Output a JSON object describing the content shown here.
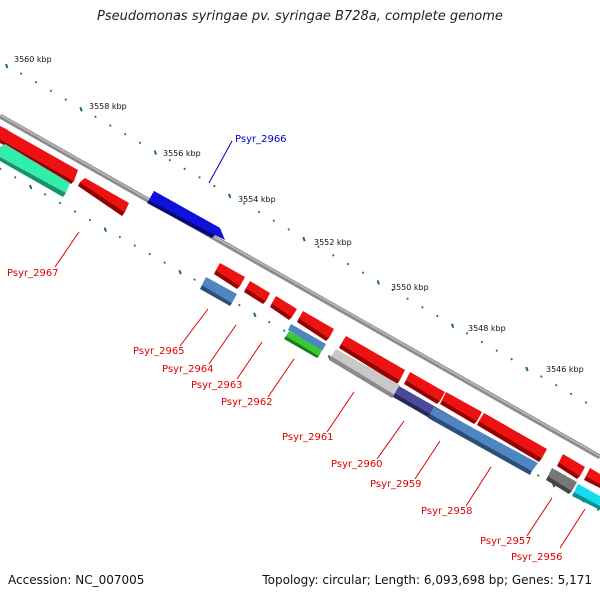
{
  "title": "Pseudomonas syringae pv. syringae B728a, complete genome",
  "footer": {
    "accession": "Accession: NC_007005",
    "summary": "Topology: circular; Length: 6,093,698 bp; Genes: 5,171"
  },
  "colors": {
    "backbone": "#8c8c8c",
    "tick": "#1a7a1a",
    "gene_red": "#ee1111",
    "gene_blue": "#1111dd",
    "gene_steelblue": "#4f86c0",
    "gene_green": "#33cc33",
    "gene_aqua": "#33eeaa",
    "gene_gray": "#bdbdbd",
    "gene_darkgray": "#777777",
    "gene_navy": "#4a4a9a",
    "gene_cyan": "#11ddee",
    "label_red": "#e00000",
    "label_blue": "#0000cc"
  },
  "scale_labels": [
    "3560 kbp",
    "3558 kbp",
    "3556 kbp",
    "3554 kbp",
    "3552 kbp",
    "3550 kbp",
    "3548 kbp",
    "3546 kbp"
  ],
  "gene_labels": [
    {
      "id": "Psyr_2966",
      "color": "blue"
    },
    {
      "id": "Psyr_2967",
      "color": "red"
    },
    {
      "id": "Psyr_2965",
      "color": "red"
    },
    {
      "id": "Psyr_2964",
      "color": "red"
    },
    {
      "id": "Psyr_2963",
      "color": "red"
    },
    {
      "id": "Psyr_2962",
      "color": "red"
    },
    {
      "id": "Psyr_2961",
      "color": "red"
    },
    {
      "id": "Psyr_2960",
      "color": "red"
    },
    {
      "id": "Psyr_2959",
      "color": "red"
    },
    {
      "id": "Psyr_2958",
      "color": "red"
    },
    {
      "id": "Psyr_2957",
      "color": "red"
    },
    {
      "id": "Psyr_2956",
      "color": "red"
    }
  ]
}
